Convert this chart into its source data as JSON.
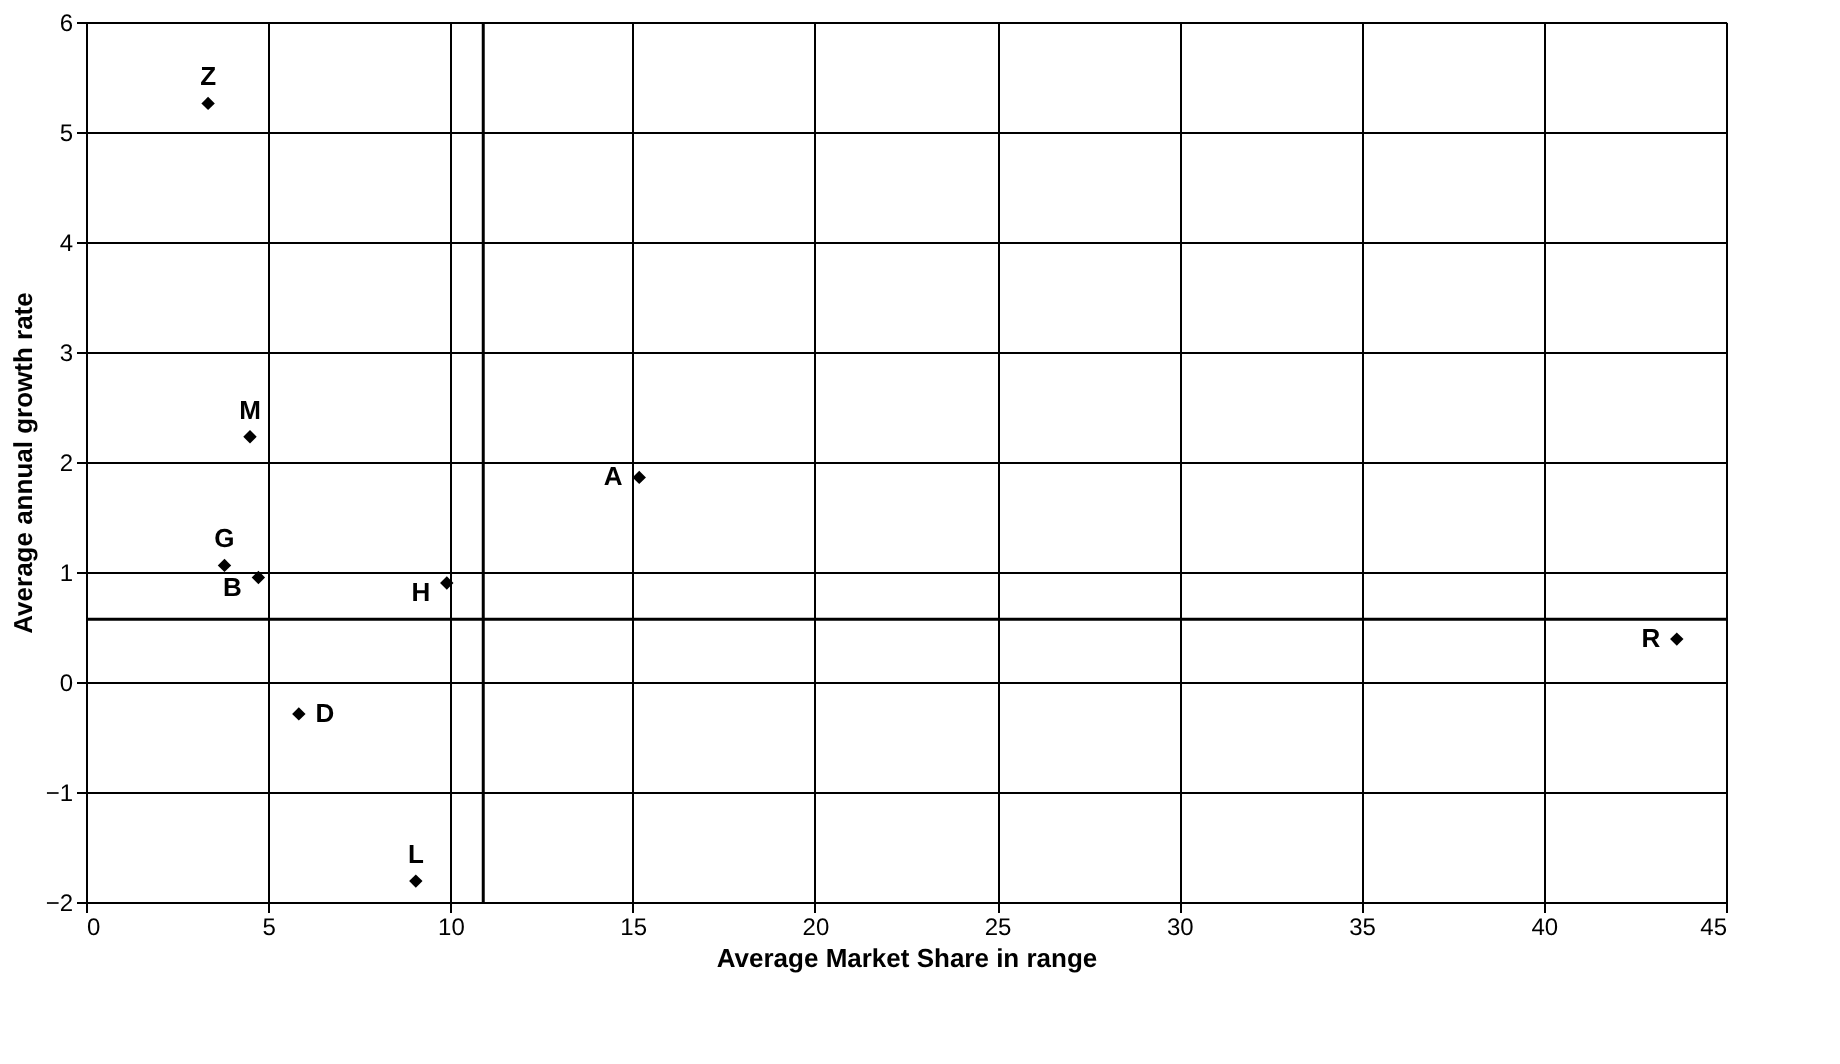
{
  "chart_data": {
    "type": "scatter",
    "xlabel": "Average Market Share in range",
    "ylabel": "Average annual growth rate",
    "x": [
      3.35,
      4.5,
      3.8,
      4.73,
      9.9,
      15.18,
      5.84,
      9.05,
      43.65
    ],
    "series": [
      {
        "color": "#000000",
        "values": [
          5.26,
          2.23,
          1.06,
          0.95,
          0.9,
          1.86,
          -0.29,
          -1.81,
          0.39
        ]
      }
    ],
    "annotations": [
      {
        "text": "Z",
        "x": 3.35,
        "y": 5.26
      },
      {
        "text": "M",
        "x": 4.5,
        "y": 2.23
      },
      {
        "text": "G",
        "x": 3.8,
        "y": 1.06
      },
      {
        "text": "B",
        "x": 4.73,
        "y": 0.95
      },
      {
        "text": "H",
        "x": 9.9,
        "y": 0.9
      },
      {
        "text": "A",
        "x": 15.18,
        "y": 1.86
      },
      {
        "text": "D",
        "x": 5.84,
        "y": -0.29
      },
      {
        "text": "L",
        "x": 9.05,
        "y": -1.81
      },
      {
        "text": "R",
        "x": 43.65,
        "y": 0.39
      }
    ],
    "ref_lines": [
      {
        "axis": "x",
        "value": 10.9,
        "color": "#000000"
      },
      {
        "axis": "y",
        "value": 0.57,
        "color": "#000000"
      }
    ],
    "xlim": [
      0,
      45
    ],
    "xticks": [
      0,
      5,
      10,
      15,
      20,
      25,
      30,
      35,
      40,
      45
    ],
    "ylim": [
      -2,
      6
    ],
    "yticks": [
      -2,
      -1,
      0,
      1,
      2,
      3,
      4,
      5,
      6
    ],
    "grid": true,
    "marker": "diamond"
  }
}
